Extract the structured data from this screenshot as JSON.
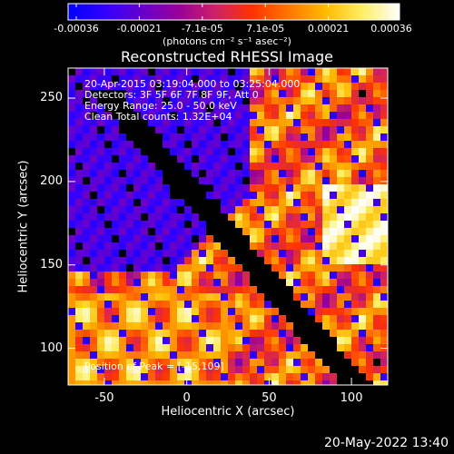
{
  "colorbar": {
    "tick_labels": [
      "-0.00036",
      "-0.00021",
      "-7.1e-05",
      "7.1e-05",
      "0.00021",
      "0.00036"
    ],
    "units": "(photons cm⁻² s⁻¹ asec⁻²)",
    "colormap": [
      "#0000ff",
      "#3300ff",
      "#6600cc",
      "#990099",
      "#cc2266",
      "#ff3300",
      "#ff7700",
      "#ffbb00",
      "#ffee66",
      "#ffffff"
    ]
  },
  "image": {
    "title": "Reconstructed RHESSI Image",
    "info_lines": [
      "20-Apr-2015 03:19:04.000 to 03:25:04.000",
      "Detectors: 3F 5F 6F 7F 8F 9F, Att 0",
      "Energy Range: 25.0 - 50.0 keV",
      "Clean       Total counts: 1.32E+04"
    ],
    "peak_label": "Position of Peak = [-15,109]",
    "xlabel": "Heliocentric X (arcsec)",
    "ylabel": "Heliocentric Y (arcsec)",
    "x_ticks": [
      "-50",
      "0",
      "50",
      "100"
    ],
    "y_ticks": [
      "100",
      "150",
      "200",
      "250"
    ],
    "xlim": [
      -72,
      122
    ],
    "ylim": [
      78,
      268
    ]
  },
  "timestamp": "20-May-2022 13:40"
}
